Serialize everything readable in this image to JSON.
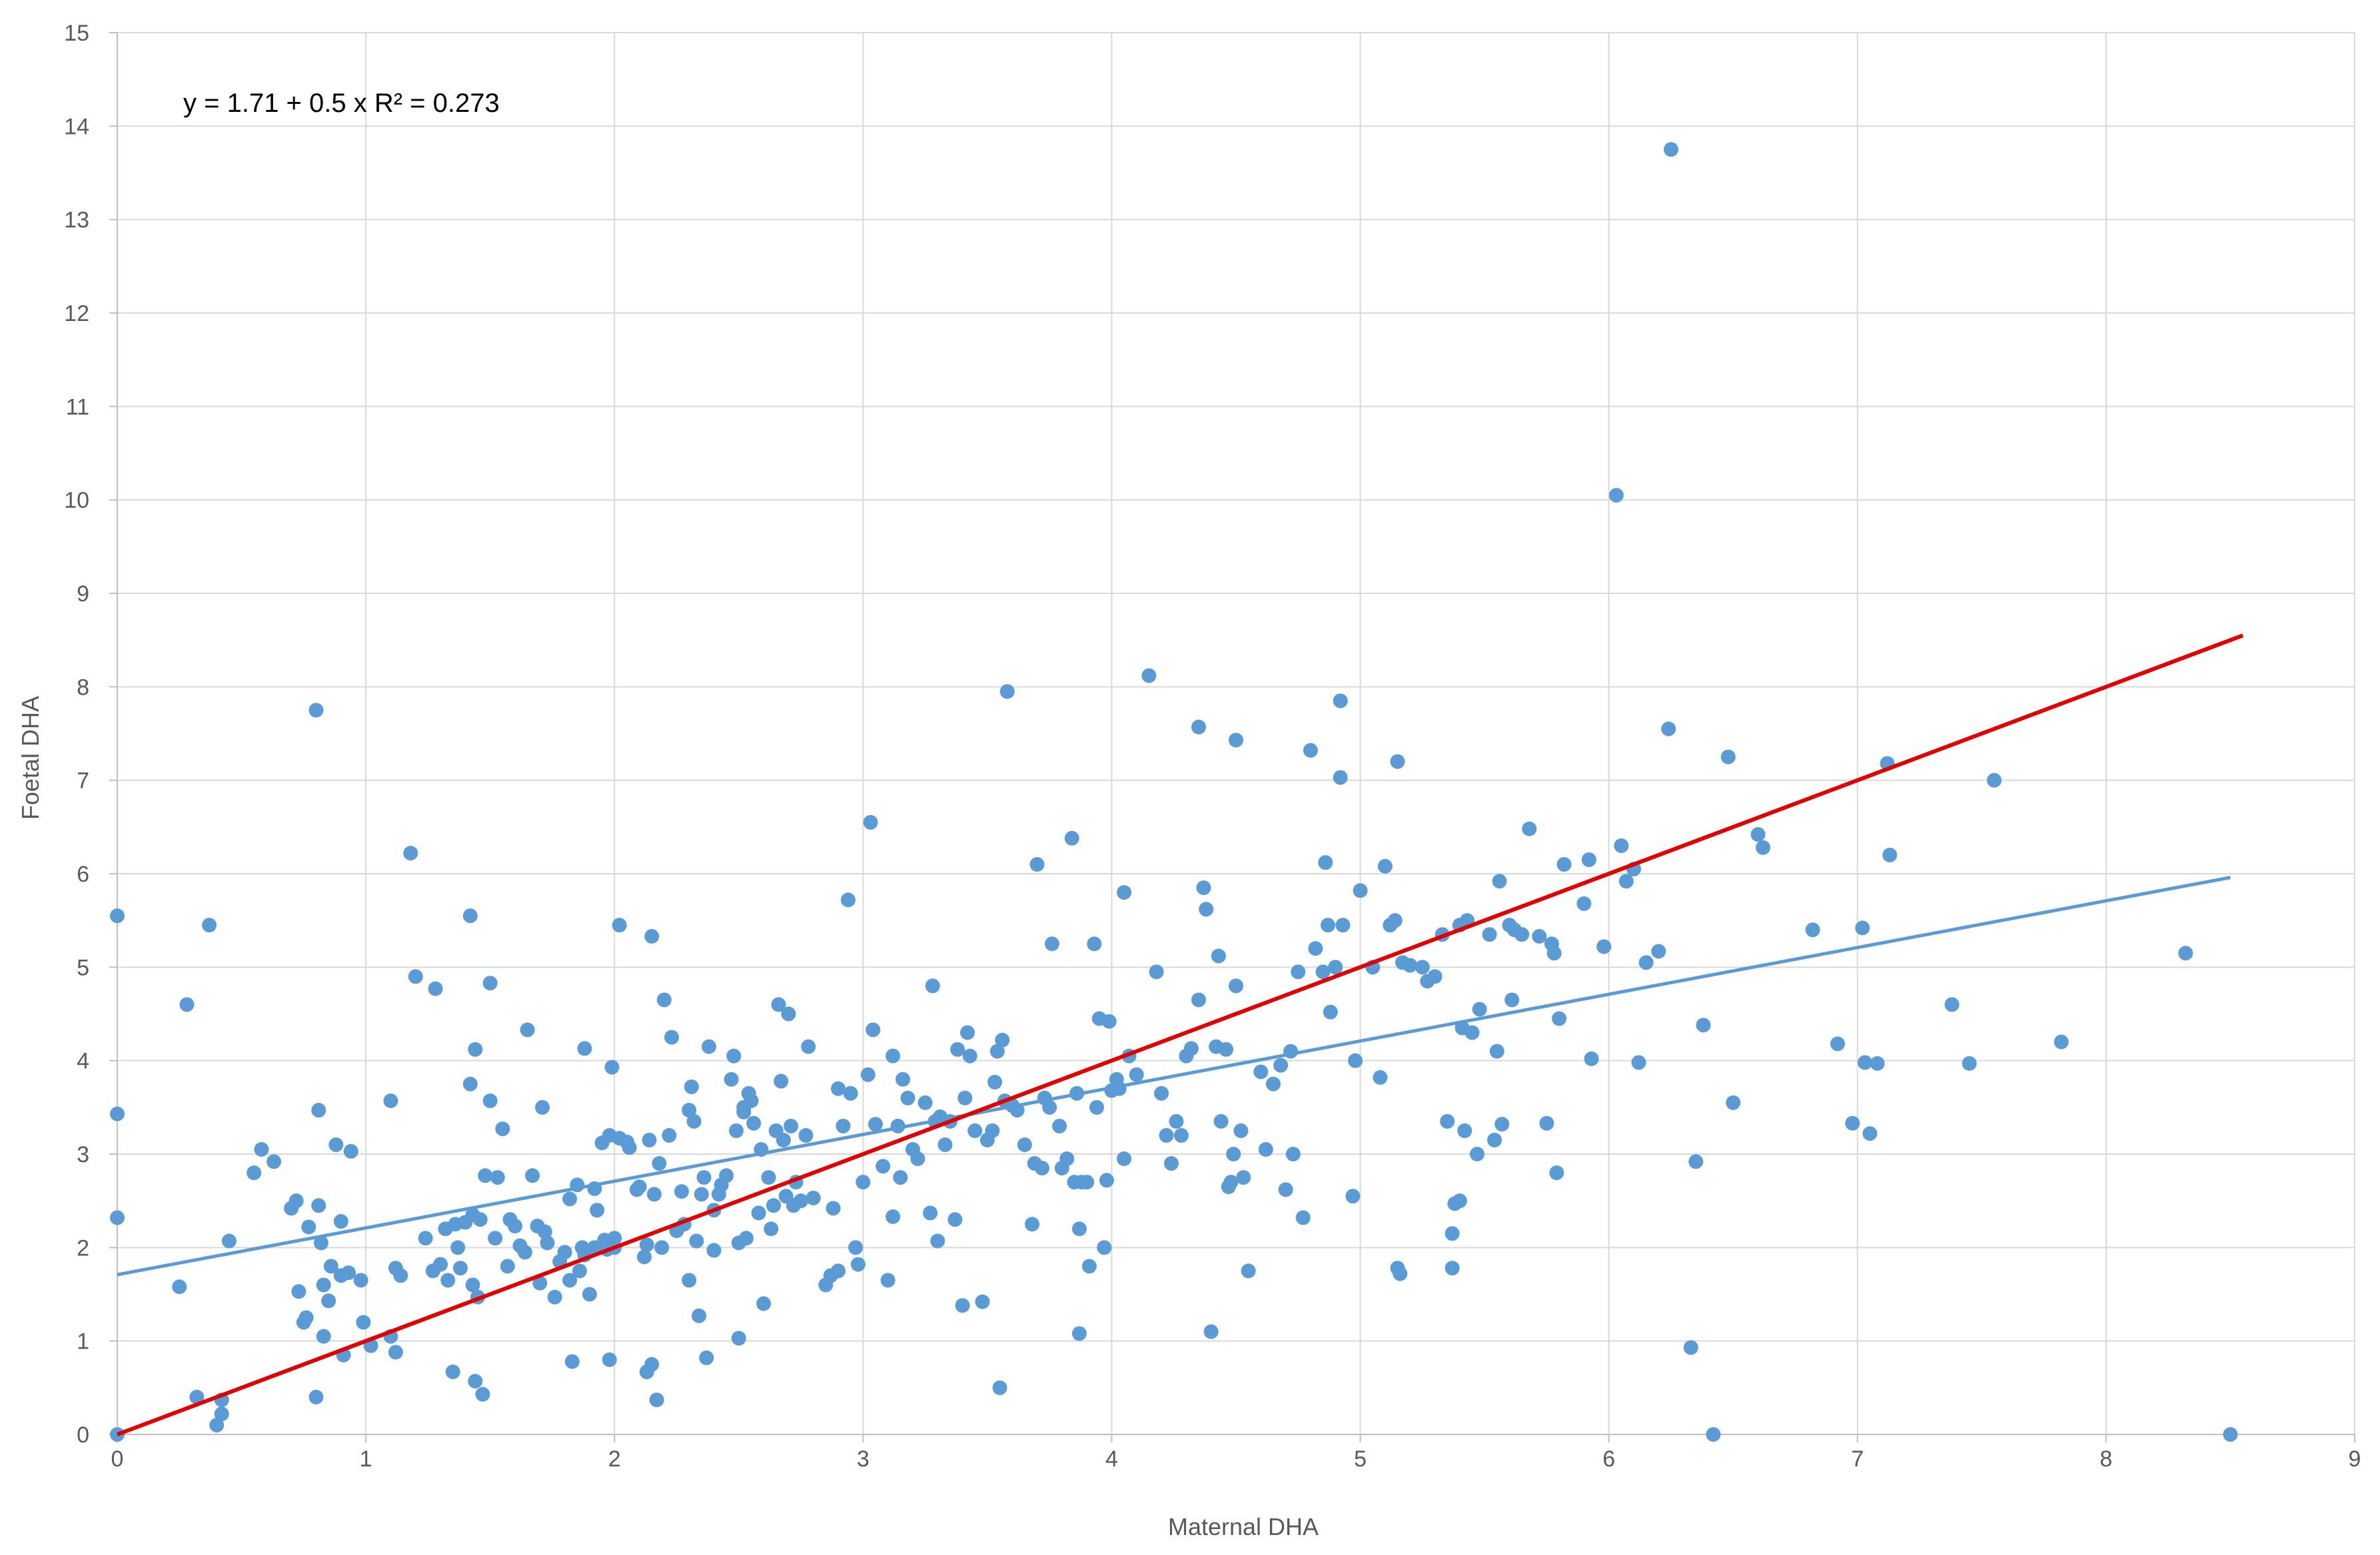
{
  "chart_data": {
    "type": "scatter",
    "title": "",
    "xlabel": "Maternal DHA",
    "ylabel": "Foetal DHA",
    "xlim": [
      0,
      9
    ],
    "ylim": [
      0,
      15
    ],
    "xticks": [
      0,
      1,
      2,
      3,
      4,
      5,
      6,
      7,
      8,
      9
    ],
    "yticks": [
      0,
      1,
      2,
      3,
      4,
      5,
      6,
      7,
      8,
      9,
      10,
      11,
      12,
      13,
      14,
      15
    ],
    "grid": true,
    "legend": "none",
    "annotation": "y = 1.71 + 0.5 x R² = 0.273",
    "colors": {
      "points": "#5B9BD5",
      "fit_line": "#5B9BD5",
      "identity_line": "#E00000",
      "grid": "#D9D9D9",
      "axis": "#BFBFBF"
    },
    "fit_line": {
      "x": [
        0,
        8.5
      ],
      "y": [
        1.71,
        5.96
      ]
    },
    "identity_line": {
      "x": [
        0,
        8.55
      ],
      "y": [
        0,
        8.55
      ]
    },
    "points": [
      [
        0,
        5.55
      ],
      [
        0,
        3.43
      ],
      [
        0,
        2.32
      ],
      [
        0,
        0
      ],
      [
        0.25,
        1.58
      ],
      [
        0.28,
        4.6
      ],
      [
        0.32,
        0.4
      ],
      [
        0.37,
        5.45
      ],
      [
        0.4,
        0.1
      ],
      [
        0.42,
        0.22
      ],
      [
        0.42,
        0.37
      ],
      [
        0.45,
        2.07
      ],
      [
        0.55,
        2.8
      ],
      [
        0.58,
        3.05
      ],
      [
        0.63,
        2.92
      ],
      [
        0.7,
        2.42
      ],
      [
        0.72,
        2.5
      ],
      [
        0.73,
        1.53
      ],
      [
        0.75,
        1.2
      ],
      [
        0.76,
        1.25
      ],
      [
        0.77,
        2.22
      ],
      [
        0.8,
        0.4
      ],
      [
        0.8,
        7.75
      ],
      [
        0.81,
        3.47
      ],
      [
        0.81,
        2.45
      ],
      [
        0.82,
        2.05
      ],
      [
        0.83,
        1.6
      ],
      [
        0.83,
        1.05
      ],
      [
        0.85,
        1.43
      ],
      [
        0.86,
        1.8
      ],
      [
        0.88,
        3.1
      ],
      [
        0.9,
        1.7
      ],
      [
        0.9,
        2.28
      ],
      [
        0.91,
        0.85
      ],
      [
        0.93,
        1.73
      ],
      [
        0.94,
        3.03
      ],
      [
        0.98,
        1.65
      ],
      [
        0.99,
        1.2
      ],
      [
        1.02,
        0.95
      ],
      [
        1.1,
        1.05
      ],
      [
        1.1,
        3.57
      ],
      [
        1.12,
        1.78
      ],
      [
        1.12,
        0.88
      ],
      [
        1.14,
        1.7
      ],
      [
        1.18,
        6.22
      ],
      [
        1.2,
        4.9
      ],
      [
        1.24,
        2.1
      ],
      [
        1.27,
        1.75
      ],
      [
        1.28,
        4.77
      ],
      [
        1.3,
        1.82
      ],
      [
        1.32,
        2.2
      ],
      [
        1.33,
        1.65
      ],
      [
        1.35,
        0.67
      ],
      [
        1.36,
        2.25
      ],
      [
        1.37,
        2.0
      ],
      [
        1.38,
        1.78
      ],
      [
        1.4,
        2.27
      ],
      [
        1.42,
        3.75
      ],
      [
        1.42,
        5.55
      ],
      [
        1.43,
        2.35
      ],
      [
        1.43,
        1.6
      ],
      [
        1.44,
        4.12
      ],
      [
        1.44,
        0.57
      ],
      [
        1.45,
        1.47
      ],
      [
        1.46,
        2.3
      ],
      [
        1.47,
        0.43
      ],
      [
        1.48,
        2.77
      ],
      [
        1.5,
        3.57
      ],
      [
        1.5,
        4.83
      ],
      [
        1.52,
        2.1
      ],
      [
        1.53,
        2.75
      ],
      [
        1.55,
        3.27
      ],
      [
        1.57,
        1.8
      ],
      [
        1.58,
        2.3
      ],
      [
        1.6,
        2.23
      ],
      [
        1.62,
        2.02
      ],
      [
        1.64,
        1.95
      ],
      [
        1.65,
        4.33
      ],
      [
        1.67,
        2.77
      ],
      [
        1.69,
        2.23
      ],
      [
        1.7,
        1.62
      ],
      [
        1.71,
        3.5
      ],
      [
        1.72,
        2.17
      ],
      [
        1.73,
        2.05
      ],
      [
        1.76,
        1.47
      ],
      [
        1.78,
        1.85
      ],
      [
        1.8,
        1.95
      ],
      [
        1.82,
        1.65
      ],
      [
        1.82,
        2.52
      ],
      [
        1.83,
        0.78
      ],
      [
        1.85,
        2.67
      ],
      [
        1.86,
        1.75
      ],
      [
        1.87,
        2.0
      ],
      [
        1.88,
        4.13
      ],
      [
        1.88,
        1.92
      ],
      [
        1.9,
        1.5
      ],
      [
        1.92,
        2.0
      ],
      [
        1.92,
        2.63
      ],
      [
        1.93,
        2.4
      ],
      [
        1.95,
        3.12
      ],
      [
        1.96,
        2.08
      ],
      [
        1.97,
        1.98
      ],
      [
        1.98,
        0.8
      ],
      [
        1.98,
        3.2
      ],
      [
        1.99,
        3.93
      ],
      [
        2.0,
        2.0
      ],
      [
        2.0,
        2.1
      ],
      [
        2.02,
        5.45
      ],
      [
        2.02,
        3.17
      ],
      [
        2.05,
        3.13
      ],
      [
        2.06,
        3.07
      ],
      [
        2.09,
        2.62
      ],
      [
        2.1,
        2.65
      ],
      [
        2.12,
        1.9
      ],
      [
        2.13,
        0.67
      ],
      [
        2.13,
        2.03
      ],
      [
        2.14,
        3.15
      ],
      [
        2.15,
        5.33
      ],
      [
        2.15,
        0.75
      ],
      [
        2.16,
        2.57
      ],
      [
        2.17,
        0.37
      ],
      [
        2.18,
        2.9
      ],
      [
        2.19,
        2.0
      ],
      [
        2.2,
        4.65
      ],
      [
        2.22,
        3.2
      ],
      [
        2.23,
        4.25
      ],
      [
        2.25,
        2.18
      ],
      [
        2.27,
        2.6
      ],
      [
        2.28,
        2.25
      ],
      [
        2.3,
        3.47
      ],
      [
        2.3,
        1.65
      ],
      [
        2.31,
        3.72
      ],
      [
        2.32,
        3.35
      ],
      [
        2.33,
        2.07
      ],
      [
        2.34,
        1.27
      ],
      [
        2.35,
        2.57
      ],
      [
        2.36,
        2.75
      ],
      [
        2.37,
        0.82
      ],
      [
        2.38,
        4.15
      ],
      [
        2.4,
        2.4
      ],
      [
        2.4,
        1.97
      ],
      [
        2.42,
        2.57
      ],
      [
        2.43,
        2.67
      ],
      [
        2.45,
        2.77
      ],
      [
        2.47,
        3.8
      ],
      [
        2.48,
        4.05
      ],
      [
        2.49,
        3.25
      ],
      [
        2.5,
        2.05
      ],
      [
        2.5,
        1.03
      ],
      [
        2.52,
        3.5
      ],
      [
        2.52,
        3.45
      ],
      [
        2.53,
        2.1
      ],
      [
        2.54,
        3.65
      ],
      [
        2.55,
        3.57
      ],
      [
        2.56,
        3.33
      ],
      [
        2.58,
        2.37
      ],
      [
        2.59,
        3.05
      ],
      [
        2.6,
        1.4
      ],
      [
        2.62,
        2.75
      ],
      [
        2.63,
        2.2
      ],
      [
        2.64,
        2.45
      ],
      [
        2.65,
        3.25
      ],
      [
        2.66,
        4.6
      ],
      [
        2.67,
        3.78
      ],
      [
        2.68,
        3.15
      ],
      [
        2.69,
        2.55
      ],
      [
        2.7,
        4.5
      ],
      [
        2.71,
        3.3
      ],
      [
        2.72,
        2.45
      ],
      [
        2.73,
        2.7
      ],
      [
        2.75,
        2.5
      ],
      [
        2.77,
        3.2
      ],
      [
        2.78,
        4.15
      ],
      [
        2.8,
        2.53
      ],
      [
        2.85,
        1.6
      ],
      [
        2.87,
        1.7
      ],
      [
        2.88,
        2.42
      ],
      [
        2.9,
        1.75
      ],
      [
        2.9,
        3.7
      ],
      [
        2.92,
        3.3
      ],
      [
        2.94,
        5.72
      ],
      [
        2.95,
        3.65
      ],
      [
        2.97,
        2.0
      ],
      [
        2.98,
        1.82
      ],
      [
        3.0,
        2.7
      ],
      [
        3.02,
        3.85
      ],
      [
        3.03,
        6.55
      ],
      [
        3.04,
        4.33
      ],
      [
        3.05,
        3.32
      ],
      [
        3.08,
        2.87
      ],
      [
        3.1,
        1.65
      ],
      [
        3.12,
        2.33
      ],
      [
        3.12,
        4.05
      ],
      [
        3.14,
        3.3
      ],
      [
        3.15,
        2.75
      ],
      [
        3.16,
        3.8
      ],
      [
        3.18,
        3.6
      ],
      [
        3.2,
        3.05
      ],
      [
        3.22,
        2.95
      ],
      [
        3.25,
        3.55
      ],
      [
        3.27,
        2.37
      ],
      [
        3.28,
        4.8
      ],
      [
        3.29,
        3.35
      ],
      [
        3.3,
        2.07
      ],
      [
        3.31,
        3.4
      ],
      [
        3.33,
        3.1
      ],
      [
        3.35,
        3.35
      ],
      [
        3.37,
        2.3
      ],
      [
        3.38,
        4.12
      ],
      [
        3.4,
        1.38
      ],
      [
        3.41,
        3.6
      ],
      [
        3.42,
        4.3
      ],
      [
        3.43,
        4.05
      ],
      [
        3.45,
        3.25
      ],
      [
        3.48,
        1.42
      ],
      [
        3.5,
        3.15
      ],
      [
        3.52,
        3.25
      ],
      [
        3.53,
        3.77
      ],
      [
        3.54,
        4.1
      ],
      [
        3.55,
        0.5
      ],
      [
        3.56,
        4.22
      ],
      [
        3.57,
        3.57
      ],
      [
        3.58,
        7.95
      ],
      [
        3.6,
        3.52
      ],
      [
        3.62,
        3.47
      ],
      [
        3.65,
        3.1
      ],
      [
        3.68,
        2.25
      ],
      [
        3.69,
        2.9
      ],
      [
        3.7,
        6.1
      ],
      [
        3.72,
        2.85
      ],
      [
        3.73,
        3.6
      ],
      [
        3.75,
        3.5
      ],
      [
        3.76,
        5.25
      ],
      [
        3.79,
        3.3
      ],
      [
        3.8,
        2.85
      ],
      [
        3.82,
        2.95
      ],
      [
        3.84,
        6.38
      ],
      [
        3.85,
        2.7
      ],
      [
        3.86,
        3.65
      ],
      [
        3.87,
        2.2
      ],
      [
        3.87,
        1.08
      ],
      [
        3.88,
        2.7
      ],
      [
        3.9,
        2.7
      ],
      [
        3.91,
        1.8
      ],
      [
        3.93,
        5.25
      ],
      [
        3.94,
        3.5
      ],
      [
        3.95,
        4.45
      ],
      [
        3.97,
        2.0
      ],
      [
        3.98,
        2.72
      ],
      [
        3.99,
        4.42
      ],
      [
        4.0,
        3.68
      ],
      [
        4.02,
        3.8
      ],
      [
        4.03,
        3.7
      ],
      [
        4.05,
        5.8
      ],
      [
        4.05,
        2.95
      ],
      [
        4.07,
        4.05
      ],
      [
        4.1,
        3.85
      ],
      [
        4.15,
        8.12
      ],
      [
        4.18,
        4.95
      ],
      [
        4.2,
        3.65
      ],
      [
        4.22,
        3.2
      ],
      [
        4.24,
        2.9
      ],
      [
        4.26,
        3.35
      ],
      [
        4.28,
        3.2
      ],
      [
        4.3,
        4.05
      ],
      [
        4.32,
        4.13
      ],
      [
        4.35,
        7.57
      ],
      [
        4.35,
        4.65
      ],
      [
        4.37,
        5.85
      ],
      [
        4.38,
        5.62
      ],
      [
        4.4,
        1.1
      ],
      [
        4.42,
        4.15
      ],
      [
        4.43,
        5.12
      ],
      [
        4.44,
        3.35
      ],
      [
        4.46,
        4.12
      ],
      [
        4.47,
        2.65
      ],
      [
        4.48,
        2.7
      ],
      [
        4.49,
        3.0
      ],
      [
        4.5,
        7.43
      ],
      [
        4.5,
        4.8
      ],
      [
        4.52,
        3.25
      ],
      [
        4.53,
        2.75
      ],
      [
        4.55,
        1.75
      ],
      [
        4.6,
        3.88
      ],
      [
        4.62,
        3.05
      ],
      [
        4.65,
        3.75
      ],
      [
        4.68,
        3.95
      ],
      [
        4.7,
        2.62
      ],
      [
        4.72,
        4.1
      ],
      [
        4.73,
        3.0
      ],
      [
        4.75,
        4.95
      ],
      [
        4.77,
        2.32
      ],
      [
        4.8,
        7.32
      ],
      [
        4.82,
        5.2
      ],
      [
        4.85,
        4.95
      ],
      [
        4.86,
        6.12
      ],
      [
        4.87,
        5.45
      ],
      [
        4.88,
        4.52
      ],
      [
        4.9,
        5.0
      ],
      [
        4.92,
        7.85
      ],
      [
        4.92,
        7.03
      ],
      [
        4.93,
        5.45
      ],
      [
        4.97,
        2.55
      ],
      [
        4.98,
        4.0
      ],
      [
        5.0,
        5.82
      ],
      [
        5.05,
        5.0
      ],
      [
        5.08,
        3.82
      ],
      [
        5.1,
        6.08
      ],
      [
        5.12,
        5.45
      ],
      [
        5.14,
        5.5
      ],
      [
        5.15,
        7.2
      ],
      [
        5.15,
        1.78
      ],
      [
        5.16,
        1.72
      ],
      [
        5.17,
        5.05
      ],
      [
        5.2,
        5.02
      ],
      [
        5.25,
        5.0
      ],
      [
        5.27,
        4.85
      ],
      [
        5.3,
        4.9
      ],
      [
        5.33,
        5.35
      ],
      [
        5.35,
        3.35
      ],
      [
        5.37,
        2.15
      ],
      [
        5.37,
        1.78
      ],
      [
        5.38,
        2.47
      ],
      [
        5.4,
        2.5
      ],
      [
        5.4,
        5.45
      ],
      [
        5.41,
        4.35
      ],
      [
        5.42,
        3.25
      ],
      [
        5.43,
        5.5
      ],
      [
        5.45,
        4.3
      ],
      [
        5.47,
        3.0
      ],
      [
        5.48,
        4.55
      ],
      [
        5.52,
        5.35
      ],
      [
        5.54,
        3.15
      ],
      [
        5.55,
        4.1
      ],
      [
        5.56,
        5.92
      ],
      [
        5.57,
        3.32
      ],
      [
        5.6,
        5.45
      ],
      [
        5.61,
        4.65
      ],
      [
        5.62,
        5.4
      ],
      [
        5.65,
        5.35
      ],
      [
        5.68,
        6.48
      ],
      [
        5.72,
        5.33
      ],
      [
        5.75,
        3.33
      ],
      [
        5.77,
        5.25
      ],
      [
        5.78,
        5.15
      ],
      [
        5.79,
        2.8
      ],
      [
        5.8,
        4.45
      ],
      [
        5.82,
        6.1
      ],
      [
        5.9,
        5.68
      ],
      [
        5.92,
        6.15
      ],
      [
        5.93,
        4.02
      ],
      [
        5.98,
        5.22
      ],
      [
        6.03,
        10.05
      ],
      [
        6.05,
        6.3
      ],
      [
        6.07,
        5.92
      ],
      [
        6.1,
        6.05
      ],
      [
        6.12,
        3.98
      ],
      [
        6.15,
        5.05
      ],
      [
        6.2,
        5.17
      ],
      [
        6.24,
        7.55
      ],
      [
        6.25,
        13.75
      ],
      [
        6.33,
        0.93
      ],
      [
        6.35,
        2.92
      ],
      [
        6.38,
        4.38
      ],
      [
        6.42,
        0
      ],
      [
        6.48,
        7.25
      ],
      [
        6.5,
        3.55
      ],
      [
        6.6,
        6.42
      ],
      [
        6.62,
        6.28
      ],
      [
        6.82,
        5.4
      ],
      [
        6.92,
        4.18
      ],
      [
        6.98,
        3.33
      ],
      [
        7.02,
        5.42
      ],
      [
        7.03,
        3.98
      ],
      [
        7.05,
        3.22
      ],
      [
        7.08,
        3.97
      ],
      [
        7.12,
        7.18
      ],
      [
        7.13,
        6.2
      ],
      [
        7.38,
        4.6
      ],
      [
        7.45,
        3.97
      ],
      [
        7.55,
        7.0
      ],
      [
        7.82,
        4.2
      ],
      [
        8.32,
        5.15
      ],
      [
        8.5,
        0
      ]
    ]
  }
}
